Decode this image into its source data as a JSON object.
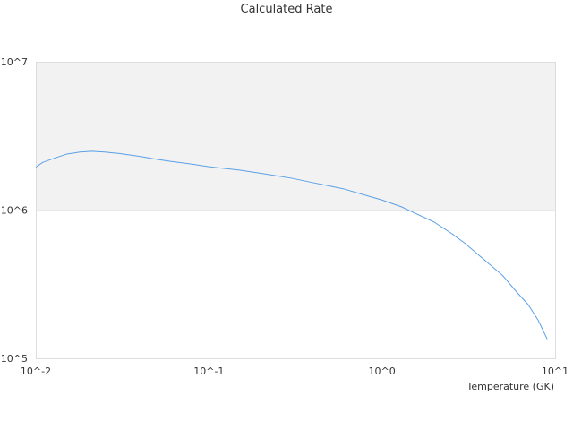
{
  "chart_data": {
    "type": "line",
    "title": "Calculated Rate",
    "xlabel": "Temperature (GK)",
    "ylabel": "",
    "x_scale": "log",
    "y_scale": "log",
    "xlim": [
      0.01,
      10
    ],
    "ylim": [
      100000,
      10000000
    ],
    "x_ticks": [
      {
        "value": 0.01,
        "label": "10^-2"
      },
      {
        "value": 0.1,
        "label": "10^-1"
      },
      {
        "value": 1,
        "label": "10^0"
      },
      {
        "value": 10,
        "label": "10^1"
      }
    ],
    "y_ticks": [
      {
        "value": 100000,
        "label": "10^5"
      },
      {
        "value": 1000000,
        "label": "10^6"
      },
      {
        "value": 10000000,
        "label": "10^7"
      }
    ],
    "shaded_band": {
      "from": 1000000,
      "to": 10000000,
      "color": "#f2f2f2"
    },
    "grid": false,
    "legend": "none",
    "series": [
      {
        "color": "#5aa0e6",
        "points": [
          {
            "x": 0.01,
            "y": 1950000
          },
          {
            "x": 0.011,
            "y": 2100000
          },
          {
            "x": 0.013,
            "y": 2250000
          },
          {
            "x": 0.015,
            "y": 2380000
          },
          {
            "x": 0.018,
            "y": 2460000
          },
          {
            "x": 0.021,
            "y": 2490000
          },
          {
            "x": 0.025,
            "y": 2460000
          },
          {
            "x": 0.03,
            "y": 2410000
          },
          {
            "x": 0.04,
            "y": 2300000
          },
          {
            "x": 0.05,
            "y": 2200000
          },
          {
            "x": 0.06,
            "y": 2130000
          },
          {
            "x": 0.08,
            "y": 2040000
          },
          {
            "x": 0.1,
            "y": 1960000
          },
          {
            "x": 0.15,
            "y": 1860000
          },
          {
            "x": 0.2,
            "y": 1770000
          },
          {
            "x": 0.3,
            "y": 1640000
          },
          {
            "x": 0.4,
            "y": 1530000
          },
          {
            "x": 0.5,
            "y": 1450000
          },
          {
            "x": 0.6,
            "y": 1390000
          },
          {
            "x": 0.8,
            "y": 1260000
          },
          {
            "x": 1.0,
            "y": 1170000
          },
          {
            "x": 1.3,
            "y": 1050000
          },
          {
            "x": 1.5,
            "y": 970000
          },
          {
            "x": 2.0,
            "y": 830000
          },
          {
            "x": 2.5,
            "y": 700000
          },
          {
            "x": 3.0,
            "y": 600000
          },
          {
            "x": 4.0,
            "y": 450000
          },
          {
            "x": 5.0,
            "y": 360000
          },
          {
            "x": 6.0,
            "y": 280000
          },
          {
            "x": 7.0,
            "y": 230000
          },
          {
            "x": 8.0,
            "y": 180000
          },
          {
            "x": 9.0,
            "y": 135000
          }
        ]
      }
    ]
  }
}
